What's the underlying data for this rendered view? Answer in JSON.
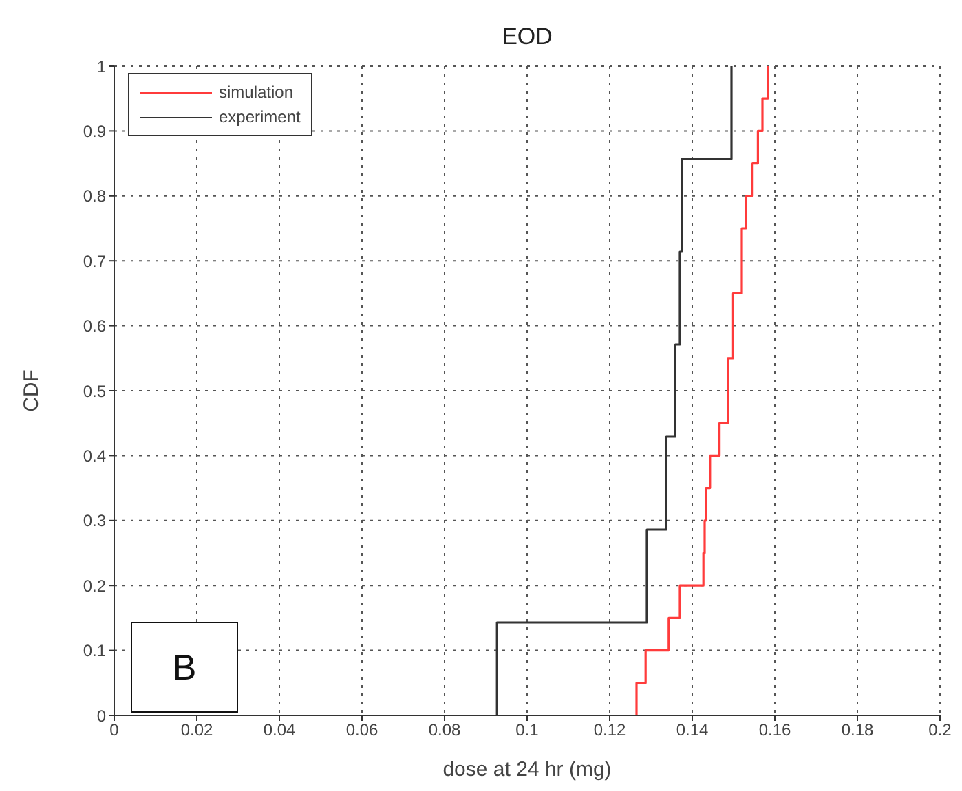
{
  "chart_data": {
    "type": "step",
    "title": "EOD",
    "xlabel": "dose at 24 hr (mg)",
    "ylabel": "CDF",
    "annotations": [
      "B"
    ],
    "xlim": [
      0,
      0.2
    ],
    "xticks": [
      0,
      0.02,
      0.04,
      0.06,
      0.08,
      0.1,
      0.12,
      0.14,
      0.16,
      0.18,
      0.2
    ],
    "ylim": [
      0,
      1
    ],
    "yticks": [
      0,
      0.1,
      0.2,
      0.3,
      0.4,
      0.5,
      0.6,
      0.7,
      0.8,
      0.9,
      1
    ],
    "grid": true,
    "legend": "top left",
    "series": [
      {
        "name": "simulation",
        "color": "#ff3b3b",
        "x": [
          0.1265,
          0.1265,
          0.1287,
          0.1343,
          0.137,
          0.1427,
          0.143,
          0.1433,
          0.1443,
          0.1466,
          0.1486,
          0.1499,
          0.152,
          0.153,
          0.1546,
          0.1559,
          0.157,
          0.1583
        ],
        "values": [
          0,
          0.05,
          0.1,
          0.15,
          0.2,
          0.25,
          0.3,
          0.35,
          0.4,
          0.45,
          0.55,
          0.65,
          0.75,
          0.8,
          0.85,
          0.9,
          0.95,
          1
        ]
      },
      {
        "name": "experiment",
        "color": "#333333",
        "x": [
          0.0927,
          0.0927,
          0.129,
          0.1337,
          0.1359,
          0.137,
          0.1375,
          0.1495
        ],
        "values": [
          0,
          0.143,
          0.286,
          0.429,
          0.571,
          0.714,
          0.857,
          1
        ]
      }
    ]
  }
}
